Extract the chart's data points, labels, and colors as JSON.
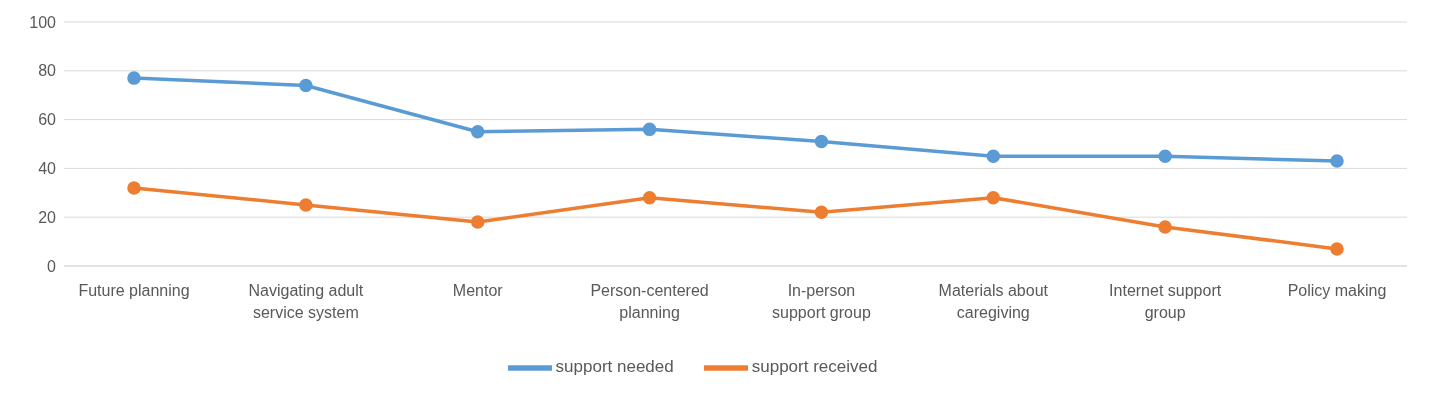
{
  "chart_data": {
    "type": "line",
    "categories": [
      "Future planning",
      "Navigating adult service system",
      "Mentor",
      "Person-centered planning",
      "In-person support group",
      "Materials about caregiving",
      "Internet support group",
      "Policy making"
    ],
    "series": [
      {
        "name": "support needed",
        "color": "#5b9bd5",
        "values": [
          77,
          74,
          55,
          56,
          51,
          45,
          45,
          43
        ]
      },
      {
        "name": "support received",
        "color": "#ed7d31",
        "values": [
          32,
          25,
          18,
          28,
          22,
          28,
          16,
          7
        ]
      }
    ],
    "ylim": [
      0,
      100
    ],
    "yticks": [
      0,
      20,
      40,
      60,
      80,
      100
    ],
    "grid": "y",
    "legend": "bottom",
    "marker": "circle",
    "line_style": "solid"
  }
}
